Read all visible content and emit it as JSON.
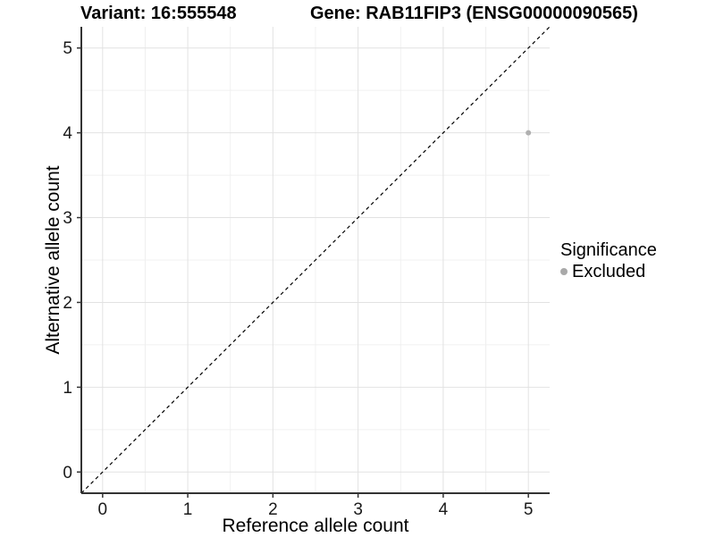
{
  "figure": {
    "background": "#ffffff"
  },
  "chart_data": {
    "type": "scatter",
    "titles": {
      "left": "Variant: 16:555548",
      "right": "Gene: RAB11FIP3 (ENSG00000090565)"
    },
    "xlabel": "Reference allele count",
    "ylabel": "Alternative allele count",
    "xlim": [
      -0.25,
      5.25
    ],
    "ylim": [
      -0.25,
      5.25
    ],
    "x_ticks": [
      0,
      1,
      2,
      3,
      4,
      5
    ],
    "y_ticks": [
      0,
      1,
      2,
      3,
      4,
      5
    ],
    "minor_gridlines": [
      0.5,
      1.5,
      2.5,
      3.5,
      4.5
    ],
    "grid": "major+minor",
    "identity_line": {
      "style": "dashed",
      "color": "#000000",
      "from": [
        -0.25,
        -0.25
      ],
      "to": [
        5.25,
        5.25
      ]
    },
    "series": [
      {
        "name": "Excluded",
        "color": "#b0b0b0",
        "points": [
          {
            "x": 5,
            "y": 4
          }
        ]
      }
    ],
    "legend": {
      "title": "Significance",
      "position": "right",
      "items": [
        {
          "label": "Excluded",
          "color": "#a9a9a9"
        }
      ]
    },
    "colors": {
      "axis_line": "#333333",
      "major_grid": "#e2e2e2",
      "minor_grid": "#f0f0f0",
      "tick_text": "#1a1a1a"
    }
  }
}
